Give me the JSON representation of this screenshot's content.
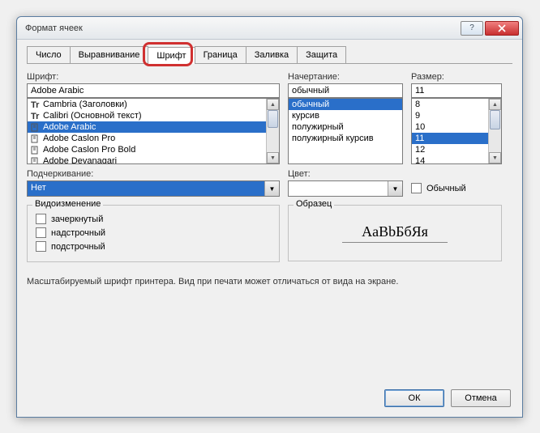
{
  "window": {
    "title": "Формат ячеек"
  },
  "tabs": {
    "items": [
      "Число",
      "Выравнивание",
      "Шрифт",
      "Граница",
      "Заливка",
      "Защита"
    ],
    "active_index": 2
  },
  "font": {
    "label": "Шрифт:",
    "value": "Adobe Arabic",
    "list": [
      {
        "name": "Cambria (Заголовки)",
        "icon": "tt"
      },
      {
        "name": "Calibri (Основной текст)",
        "icon": "tt"
      },
      {
        "name": "Adobe Arabic",
        "icon": "o",
        "selected": true
      },
      {
        "name": "Adobe Caslon Pro",
        "icon": "o"
      },
      {
        "name": "Adobe Caslon Pro Bold",
        "icon": "o"
      },
      {
        "name": "Adobe Devanagari",
        "icon": "o"
      }
    ]
  },
  "style": {
    "label": "Начертание:",
    "value": "обычный",
    "list": [
      {
        "name": "обычный",
        "selected": true
      },
      {
        "name": "курсив"
      },
      {
        "name": "полужирный"
      },
      {
        "name": "полужирный курсив"
      }
    ]
  },
  "size": {
    "label": "Размер:",
    "value": "11",
    "list": [
      {
        "name": "8"
      },
      {
        "name": "9"
      },
      {
        "name": "10"
      },
      {
        "name": "11",
        "selected": true
      },
      {
        "name": "12"
      },
      {
        "name": "14"
      }
    ]
  },
  "underline": {
    "label": "Подчеркивание:",
    "value": "Нет"
  },
  "color": {
    "label": "Цвет:",
    "swatch": "#000000"
  },
  "normal_font": {
    "label": "Обычный",
    "checked": false
  },
  "effects": {
    "legend": "Видоизменение",
    "items": [
      {
        "label": "зачеркнутый",
        "checked": false
      },
      {
        "label": "надстрочный",
        "checked": false
      },
      {
        "label": "подстрочный",
        "checked": false
      }
    ]
  },
  "sample": {
    "legend": "Образец",
    "text": "AaBbБбЯя"
  },
  "hint": "Масштабируемый шрифт принтера. Вид при печати может отличаться от вида на экране.",
  "buttons": {
    "ok": "ОК",
    "cancel": "Отмена"
  },
  "colors": {
    "selection": "#2a6fc9",
    "highlight_ring": "#d03030",
    "window_border": "#5a7ca0"
  }
}
